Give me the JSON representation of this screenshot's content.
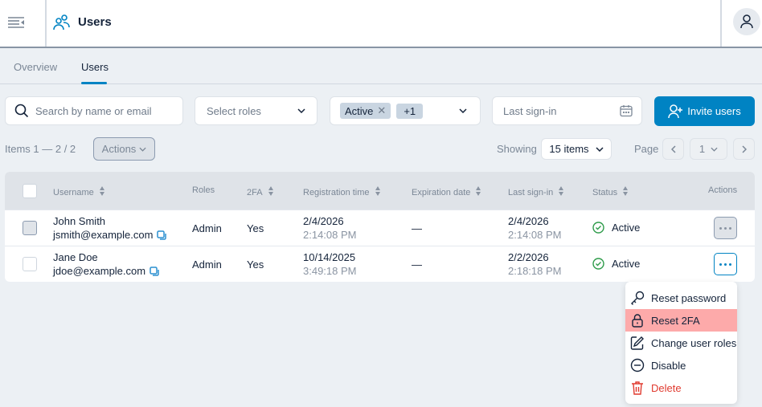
{
  "header": {
    "title": "Users",
    "menu_icon": "collapse-menu-icon",
    "users_icon": "users-icon",
    "avatar_icon": "user-icon"
  },
  "tabs": [
    {
      "label": "Overview",
      "active": false
    },
    {
      "label": "Users",
      "active": true
    }
  ],
  "filters": {
    "search_placeholder": "Search by name or email",
    "roles_placeholder": "Select roles",
    "status_chips": [
      "Active",
      "+1"
    ],
    "last_signin_placeholder": "Last sign-in",
    "invite_label": "Invite users"
  },
  "toolbar": {
    "items_text": "Items 1 — 2 / 2",
    "actions_label": "Actions",
    "showing_label": "Showing",
    "page_size": "15 items",
    "page_label": "Page",
    "page_value": "1"
  },
  "table": {
    "columns": [
      "Username",
      "Roles",
      "2FA",
      "Registration time",
      "Expiration date",
      "Last sign-in",
      "Status",
      "Actions"
    ],
    "rows": [
      {
        "name": "John Smith",
        "email": "jsmith@example.com",
        "roles": "Admin",
        "twofa": "Yes",
        "reg_date": "2/4/2026",
        "reg_time": "2:14:08 PM",
        "expiration": "—",
        "signin_date": "2/4/2026",
        "signin_time": "2:14:08 PM",
        "status": "Active"
      },
      {
        "name": "Jane Doe",
        "email": "jdoe@example.com",
        "roles": "Admin",
        "twofa": "Yes",
        "reg_date": "10/14/2025",
        "reg_time": "3:49:18 PM",
        "expiration": "—",
        "signin_date": "2/2/2026",
        "signin_time": "2:18:18 PM",
        "status": "Active"
      }
    ]
  },
  "menu": {
    "items": [
      {
        "label": "Reset password",
        "icon": "key-icon"
      },
      {
        "label": "Reset 2FA",
        "icon": "lock-icon"
      },
      {
        "label": "Change user roles",
        "icon": "edit-icon"
      },
      {
        "label": "Disable",
        "icon": "minus-circle-icon"
      },
      {
        "label": "Delete",
        "icon": "trash-icon"
      }
    ]
  },
  "colors": {
    "accent": "#0083c3",
    "success": "#2e9b4a",
    "danger": "#e03a2f",
    "highlight": "#fdaaaa"
  }
}
